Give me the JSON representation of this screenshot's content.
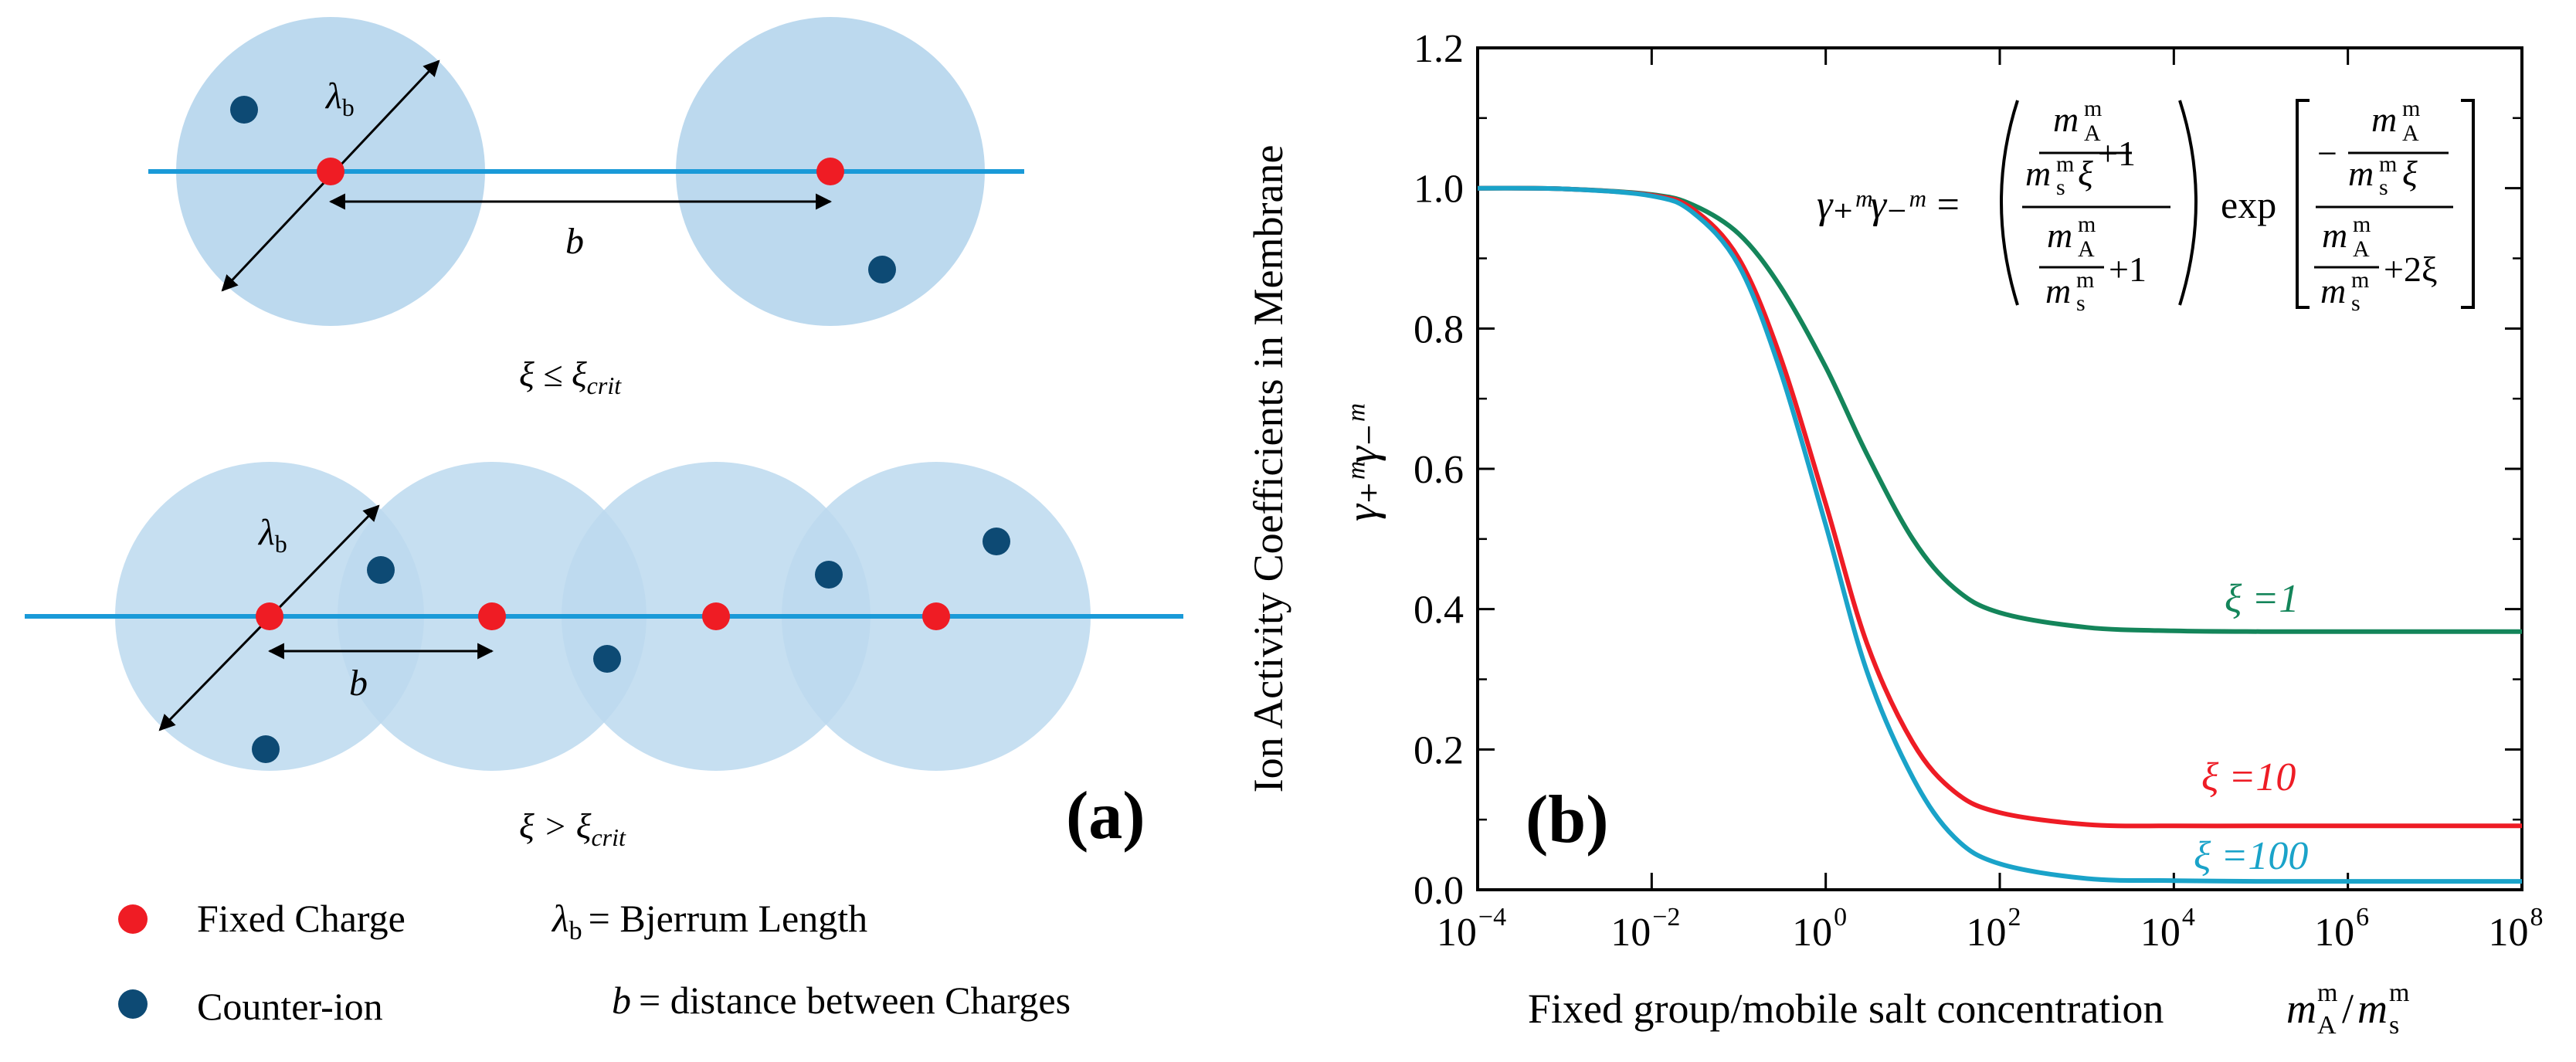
{
  "panel_a": {
    "label": "(a)",
    "bjerrum_symbol": "λ",
    "bjerrum_sub": "b",
    "spacing_symbol": "b",
    "cond_low": "ξ ≤ ξ",
    "cond_low_sub": "crit",
    "cond_high": "ξ > ξ",
    "cond_high_sub": "crit",
    "legend": {
      "fixed_charge": "Fixed Charge",
      "counter_ion": "Counter-ion",
      "bjerrum_def": "= Bjerrum Length",
      "b_def": "= distance between Charges"
    },
    "colors": {
      "sphere": "#bcd9ee",
      "rod": "#1a9ad8",
      "fixed": "#ef1c24",
      "counter": "#0d4a74"
    }
  },
  "panel_b": {
    "label": "(b)",
    "ylabel": "Ion Activity Coefficients in Membrane",
    "ylabel_math": "γ₊ᵐγ₋ᵐ",
    "xlabel": "Fixed group/mobile salt concentration",
    "xlabel_math_num": "m",
    "xlabel_math_num_sup": "m",
    "xlabel_math_num_sub": "A",
    "xlabel_math_den": "m",
    "xlabel_math_den_sup": "m",
    "xlabel_math_den_sub": "s",
    "equation": {
      "lhs": "γ₊ᵐγ₋ᵐ =",
      "exp": "exp",
      "plus1": "+1",
      "plus2xi": "+2ξ",
      "m": "m",
      "sup_m": "m",
      "sub_A": "A",
      "sub_s": "s",
      "xi": "ξ",
      "minus": "−"
    }
  },
  "chart_data": {
    "type": "line",
    "xscale": "log",
    "xlim": [
      0.0001,
      100000000
    ],
    "ylim": [
      0.0,
      1.2
    ],
    "xticks": [
      "10",
      "10",
      "10",
      "10",
      "10",
      "10",
      "10"
    ],
    "xtick_exponents": [
      "−4",
      "−2",
      "0",
      "2",
      "4",
      "6",
      "8"
    ],
    "xtick_values": [
      0.0001,
      0.01,
      1,
      100,
      10000,
      1000000,
      100000000
    ],
    "yticks": [
      "0.0",
      "0.2",
      "0.4",
      "0.6",
      "0.8",
      "1.0",
      "1.2"
    ],
    "ytick_values": [
      0.0,
      0.2,
      0.4,
      0.6,
      0.8,
      1.0,
      1.2
    ],
    "x": [
      0.0001,
      0.001,
      0.01,
      0.03,
      0.1,
      0.3,
      1,
      3,
      10,
      30,
      100,
      1000,
      10000,
      100000,
      1000000,
      10000000,
      100000000
    ],
    "series": [
      {
        "name": "ξ =1",
        "color": "#14855a",
        "values": [
          1.0,
          0.999,
          0.991,
          0.976,
          0.935,
          0.86,
          0.745,
          0.62,
          0.5,
          0.43,
          0.395,
          0.374,
          0.369,
          0.368,
          0.368,
          0.368,
          0.368
        ]
      },
      {
        "name": "ξ =10",
        "color": "#ee1c25",
        "values": [
          1.0,
          0.999,
          0.99,
          0.97,
          0.9,
          0.76,
          0.55,
          0.35,
          0.21,
          0.14,
          0.11,
          0.093,
          0.091,
          0.091,
          0.091,
          0.091,
          0.091
        ]
      },
      {
        "name": "ξ =100",
        "color": "#1aa3c9",
        "values": [
          1.0,
          0.999,
          0.989,
          0.965,
          0.89,
          0.74,
          0.52,
          0.31,
          0.16,
          0.075,
          0.037,
          0.016,
          0.013,
          0.012,
          0.012,
          0.012,
          0.012
        ]
      }
    ]
  }
}
